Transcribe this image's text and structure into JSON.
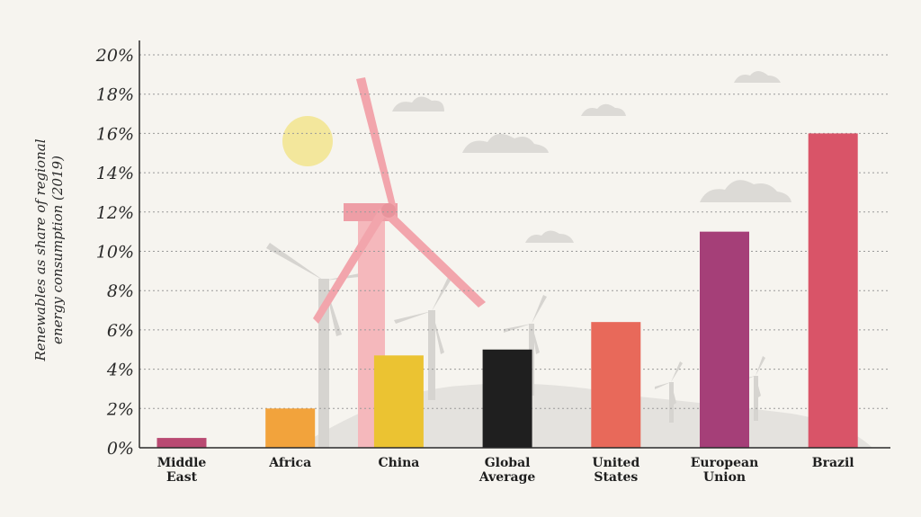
{
  "chart_data": {
    "type": "bar",
    "categories": [
      [
        "Middle",
        "East"
      ],
      [
        "Africa"
      ],
      [
        "China"
      ],
      [
        "Global",
        "Average"
      ],
      [
        "United",
        "States"
      ],
      [
        "European",
        "Union"
      ],
      [
        "Brazil"
      ]
    ],
    "values": [
      0.5,
      2.0,
      4.7,
      5.0,
      6.4,
      11.0,
      16.0
    ],
    "colors": [
      "#b94a72",
      "#f2a33c",
      "#ebc332",
      "#1f1f1f",
      "#e8695a",
      "#a53f78",
      "#d95468"
    ],
    "ylabel": [
      "Renewables as share of regional",
      "energy consumption (2019)"
    ],
    "ylim": [
      0,
      20
    ],
    "yticks": [
      0,
      2,
      4,
      6,
      8,
      10,
      12,
      14,
      16,
      18,
      20
    ],
    "tick_suffix": "%",
    "grid": true,
    "background_illustration": [
      "sun-icon",
      "cloud-icon",
      "wind-turbine-icon",
      "hill-icon"
    ]
  }
}
